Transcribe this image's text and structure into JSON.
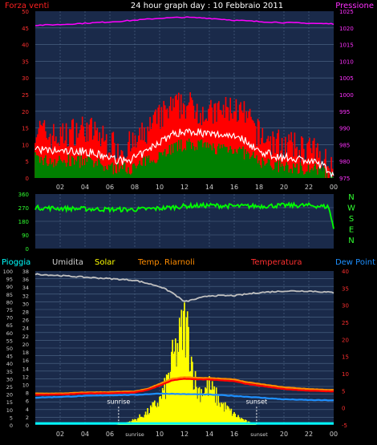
{
  "chart_data": [
    {
      "type": "line",
      "title": "24 hour graph day : 10 Febbraio 2011",
      "left_label": "Forza venti",
      "right_label": "Pressione",
      "x_ticks": [
        "02",
        "04",
        "06",
        "08",
        "10",
        "12",
        "14",
        "16",
        "18",
        "20",
        "22",
        "00"
      ],
      "ylim_left": [
        0,
        50
      ],
      "y_ticks_left": [
        "0",
        "5",
        "10",
        "15",
        "20",
        "25",
        "30",
        "35",
        "40",
        "45",
        "50"
      ],
      "ylim_right": [
        975,
        1025
      ],
      "y_ticks_right": [
        "975",
        "980",
        "985",
        "990",
        "995",
        "1000",
        "1005",
        "1010",
        "1015",
        "1020",
        "1025"
      ],
      "grid": true,
      "colors": {
        "wind_gust": "#ff0000",
        "wind_avg": "#ffffff",
        "wind_min": "#008000",
        "pressure": "#ff00ff",
        "background": "#1a2a4a"
      },
      "series": [
        {
          "role": "pressure",
          "axis": "right",
          "x": [
            0,
            2,
            4,
            6,
            8,
            10,
            12,
            14,
            16,
            18,
            20,
            22,
            24
          ],
          "values": [
            1020.8,
            1021.0,
            1021.4,
            1021.8,
            1022.3,
            1022.9,
            1023.2,
            1022.9,
            1022.3,
            1021.9,
            1021.6,
            1021.4,
            1021.2
          ]
        },
        {
          "role": "wind_gust",
          "axis": "left",
          "x": [
            0,
            1,
            2,
            3,
            4,
            5,
            6,
            7,
            8,
            9,
            10,
            11,
            12,
            13,
            14,
            15,
            16,
            17,
            18,
            19,
            20,
            21,
            22,
            23,
            24
          ],
          "values": [
            15,
            13,
            12,
            14,
            15,
            13,
            10,
            9,
            10,
            14,
            18,
            21,
            22,
            21,
            19,
            20,
            21,
            18,
            13,
            11,
            10,
            9,
            9,
            6,
            3
          ]
        },
        {
          "role": "wind_avg",
          "axis": "left",
          "x": [
            0,
            1,
            2,
            3,
            4,
            5,
            6,
            7,
            8,
            9,
            10,
            11,
            12,
            13,
            14,
            15,
            16,
            17,
            18,
            19,
            20,
            21,
            22,
            23,
            24
          ],
          "values": [
            9,
            8,
            8,
            8,
            8,
            7,
            6,
            5,
            6,
            8,
            11,
            13,
            14,
            14,
            13,
            13,
            13,
            11,
            8,
            7,
            6,
            6,
            5,
            4,
            1
          ]
        },
        {
          "role": "wind_min",
          "axis": "left",
          "x": [
            0,
            1,
            2,
            3,
            4,
            5,
            6,
            7,
            8,
            9,
            10,
            11,
            12,
            13,
            14,
            15,
            16,
            17,
            18,
            19,
            20,
            21,
            22,
            23,
            24
          ],
          "values": [
            6,
            5,
            5,
            5,
            5,
            4,
            3,
            3,
            3,
            5,
            7,
            9,
            10,
            10,
            9,
            9,
            9,
            7,
            5,
            4,
            3,
            3,
            3,
            2,
            0
          ]
        }
      ]
    },
    {
      "type": "line",
      "side_letters": [
        "N",
        "W",
        "S",
        "E",
        "N"
      ],
      "ylim": [
        0,
        360
      ],
      "y_ticks": [
        "0",
        "90",
        "180",
        "270",
        "360"
      ],
      "grid": true,
      "colors": {
        "direction": "#00ff00",
        "background": "#1a2a4a"
      },
      "series": [
        {
          "role": "wind_direction",
          "x": [
            0,
            2,
            4,
            6,
            8,
            10,
            12,
            14,
            16,
            18,
            20,
            22,
            23.6,
            24
          ],
          "values": [
            270,
            265,
            262,
            258,
            258,
            265,
            280,
            285,
            280,
            280,
            285,
            285,
            275,
            130
          ]
        }
      ]
    },
    {
      "type": "area",
      "legend": [
        "Pioggia",
        "Umidita",
        "Solar",
        "Temp. Riarnoli",
        "Temperatura",
        "Dew Point"
      ],
      "x_ticks": [
        "02",
        "04",
        "06",
        "sunrise",
        "10",
        "12",
        "14",
        "16",
        "sunset",
        "20",
        "22",
        "00"
      ],
      "annotations": [
        "sunrise",
        "sunset"
      ],
      "annotation_x": [
        6.7,
        17.8
      ],
      "ylim_left": [
        0,
        100
      ],
      "y_ticks_left": [
        "0",
        "5",
        "10",
        "15",
        "20",
        "25",
        "30",
        "35",
        "40",
        "45",
        "50",
        "55",
        "60",
        "65",
        "70",
        "75",
        "80",
        "85",
        "90",
        "95",
        "100"
      ],
      "ylim_mid": [
        0,
        38
      ],
      "y_ticks_mid": [
        "0",
        "2",
        "4",
        "6",
        "8",
        "10",
        "12",
        "14",
        "16",
        "18",
        "20",
        "22",
        "24",
        "26",
        "28",
        "30",
        "32",
        "34",
        "36",
        "38"
      ],
      "ylim_right": [
        -5,
        40
      ],
      "y_ticks_right": [
        "-5",
        "0",
        "5",
        "10",
        "15",
        "20",
        "25",
        "30",
        "35",
        "40"
      ],
      "grid": true,
      "colors": {
        "pioggia": "#00ffff",
        "umidita": "#c0c0c0",
        "solar": "#ffff00",
        "riarnoli": "#ff8c00",
        "temperatura": "#ff0000",
        "dewpoint": "#1e90ff",
        "background": "#1a2a4a"
      },
      "series": [
        {
          "name": "Umidita",
          "axis": "left",
          "x": [
            0,
            2,
            4,
            6,
            8,
            10,
            11,
            12,
            13,
            14,
            16,
            18,
            20,
            22,
            24
          ],
          "values": [
            98,
            97,
            96,
            95,
            94,
            90,
            86,
            80,
            82,
            84,
            84,
            86,
            87,
            87,
            86
          ]
        },
        {
          "name": "Solar",
          "axis": "mid",
          "x": [
            6.5,
            7,
            8,
            9,
            10,
            10.5,
            11,
            11.5,
            12,
            12.3,
            12.6,
            13,
            13.5,
            14,
            15,
            16,
            17,
            17.8
          ],
          "values": [
            0,
            0.3,
            1.5,
            3.5,
            7,
            11,
            18,
            23,
            29,
            26,
            18,
            10,
            10,
            11,
            6,
            3,
            1,
            0
          ]
        },
        {
          "name": "Temp. Riarnoli",
          "axis": "right",
          "x": [
            0,
            2,
            4,
            6,
            8,
            9,
            10,
            11,
            12,
            13,
            14,
            15,
            16,
            17,
            18,
            20,
            22,
            24
          ],
          "values": [
            4.2,
            4.2,
            4.5,
            4.6,
            4.8,
            5.5,
            7,
            8.5,
            9,
            8.8,
            8.7,
            8.5,
            8.3,
            7.5,
            7,
            6,
            5.5,
            5.2
          ]
        },
        {
          "name": "Temperatura",
          "axis": "right",
          "x": [
            0,
            2,
            4,
            6,
            8,
            9,
            10,
            11,
            12,
            13,
            14,
            15,
            16,
            17,
            18,
            20,
            22,
            24
          ],
          "values": [
            3.8,
            3.9,
            4.2,
            4.3,
            4.5,
            5.2,
            6.5,
            8,
            8.5,
            8.3,
            8.3,
            8,
            7.8,
            7,
            6.5,
            5.5,
            5,
            4.8
          ]
        },
        {
          "name": "Dew Point",
          "axis": "right",
          "x": [
            0,
            2,
            4,
            6,
            8,
            10,
            12,
            14,
            16,
            18,
            20,
            22,
            24
          ],
          "values": [
            3,
            3.2,
            3.5,
            3.7,
            3.8,
            4.2,
            4,
            3.9,
            3.5,
            3,
            2.5,
            2.3,
            2.2
          ]
        },
        {
          "name": "Pioggia",
          "axis": "left",
          "x": [
            0,
            24
          ],
          "values": [
            1,
            1
          ]
        }
      ]
    }
  ]
}
